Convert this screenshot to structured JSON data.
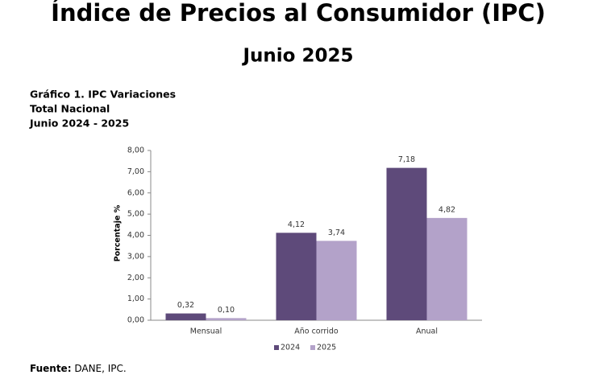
{
  "title": "Índice de Precios al Consumidor (IPC)",
  "subtitle": "Junio 2025",
  "chart_data": {
    "type": "bar",
    "title_lines": [
      "Gráfico 1. IPC Variaciones",
      "Total Nacional",
      "Junio 2024 - 2025"
    ],
    "y_label": "Porcentaje %",
    "categories": [
      "Mensual",
      "Año corrido",
      "Anual"
    ],
    "series": [
      {
        "name": "2024",
        "color": "#5e4a7a",
        "values": [
          0.32,
          4.12,
          7.18
        ],
        "value_labels": [
          "0,32",
          "4,12",
          "7,18"
        ]
      },
      {
        "name": "2025",
        "color": "#b3a2c9",
        "values": [
          0.1,
          3.74,
          4.82
        ],
        "value_labels": [
          "0,10",
          "3,74",
          "4,82"
        ]
      }
    ],
    "ylim": [
      0,
      8
    ],
    "yticks": [
      {
        "value": 0,
        "label": "0,00"
      },
      {
        "value": 1,
        "label": "1,00"
      },
      {
        "value": 2,
        "label": "2,00"
      },
      {
        "value": 3,
        "label": "3,00"
      },
      {
        "value": 4,
        "label": "4,00"
      },
      {
        "value": 5,
        "label": "5,00"
      },
      {
        "value": 6,
        "label": "6,00"
      },
      {
        "value": 7,
        "label": "7,00"
      },
      {
        "value": 8,
        "label": "8,00"
      }
    ],
    "grid": false,
    "legend": "bottom"
  },
  "source": {
    "label": "Fuente:",
    "text": "DANE, IPC."
  }
}
